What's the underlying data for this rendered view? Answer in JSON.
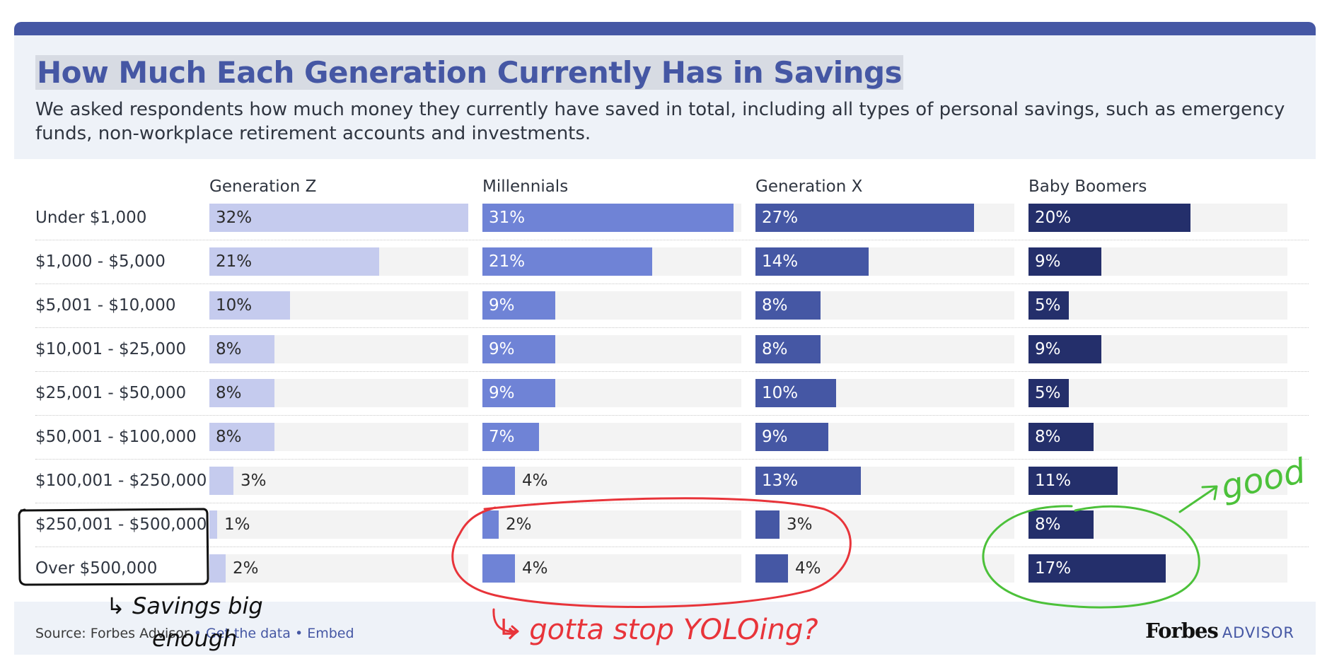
{
  "header": {
    "title": "How Much Each Generation Currently Has in Savings",
    "subtitle": "We asked respondents how much money they currently have saved in total, including all types of personal savings, such as emergency funds, non-workplace retirement accounts and investments."
  },
  "footer": {
    "source_prefix": "Source: Forbes Advisor",
    "bullet": "•",
    "get_data": "Get the data",
    "embed": "Embed",
    "logo_forbes": "Forbes",
    "logo_advisor": "ADVISOR"
  },
  "annotations": {
    "black_note_line1": "↳ Savings big",
    "black_note_line2": "enough",
    "red_note": "↳ gotta stop YOLOing?",
    "green_note": "good"
  },
  "colors": {
    "title": "#4557a4",
    "track": "#f3f3f3",
    "black_annotation": "#111111",
    "red_annotation": "#e8343a",
    "green_annotation": "#4cc13a"
  },
  "chart_data": {
    "type": "bar",
    "orientation": "horizontal",
    "panels": "one panel per generation",
    "xlim": [
      0,
      32
    ],
    "categories": [
      "Under $1,000",
      "$1,000 - $5,000",
      "$5,001 - $10,000",
      "$10,001 - $25,000",
      "$25,001 - $50,000",
      "$50,001 - $100,000",
      "$100,001 - $250,000",
      "$250,001 - $500,000",
      "Over $500,000"
    ],
    "series": [
      {
        "name": "Generation Z",
        "color": "#c5cbee",
        "label_color": "#2b2b2b",
        "values": [
          32,
          21,
          10,
          8,
          8,
          8,
          3,
          1,
          2
        ],
        "labels": [
          "32%",
          "21%",
          "10%",
          "8%",
          "8%",
          "8%",
          "3%",
          "1%",
          "2%"
        ]
      },
      {
        "name": "Millennials",
        "color": "#6f83d6",
        "label_color": "#ffffff",
        "values": [
          31,
          21,
          9,
          9,
          9,
          7,
          4,
          2,
          4
        ],
        "labels": [
          "31%",
          "21%",
          "9%",
          "9%",
          "9%",
          "7%",
          "4%",
          "2%",
          "4%"
        ]
      },
      {
        "name": "Generation X",
        "color": "#4557a4",
        "label_color": "#ffffff",
        "values": [
          27,
          14,
          8,
          8,
          10,
          9,
          13,
          3,
          4
        ],
        "labels": [
          "27%",
          "14%",
          "8%",
          "8%",
          "10%",
          "9%",
          "13%",
          "3%",
          "4%"
        ]
      },
      {
        "name": "Baby Boomers",
        "color": "#242f6b",
        "label_color": "#ffffff",
        "values": [
          20,
          9,
          5,
          9,
          5,
          8,
          11,
          8,
          17
        ],
        "labels": [
          "20%",
          "9%",
          "5%",
          "9%",
          "5%",
          "8%",
          "11%",
          "8%",
          "17%"
        ]
      }
    ]
  }
}
